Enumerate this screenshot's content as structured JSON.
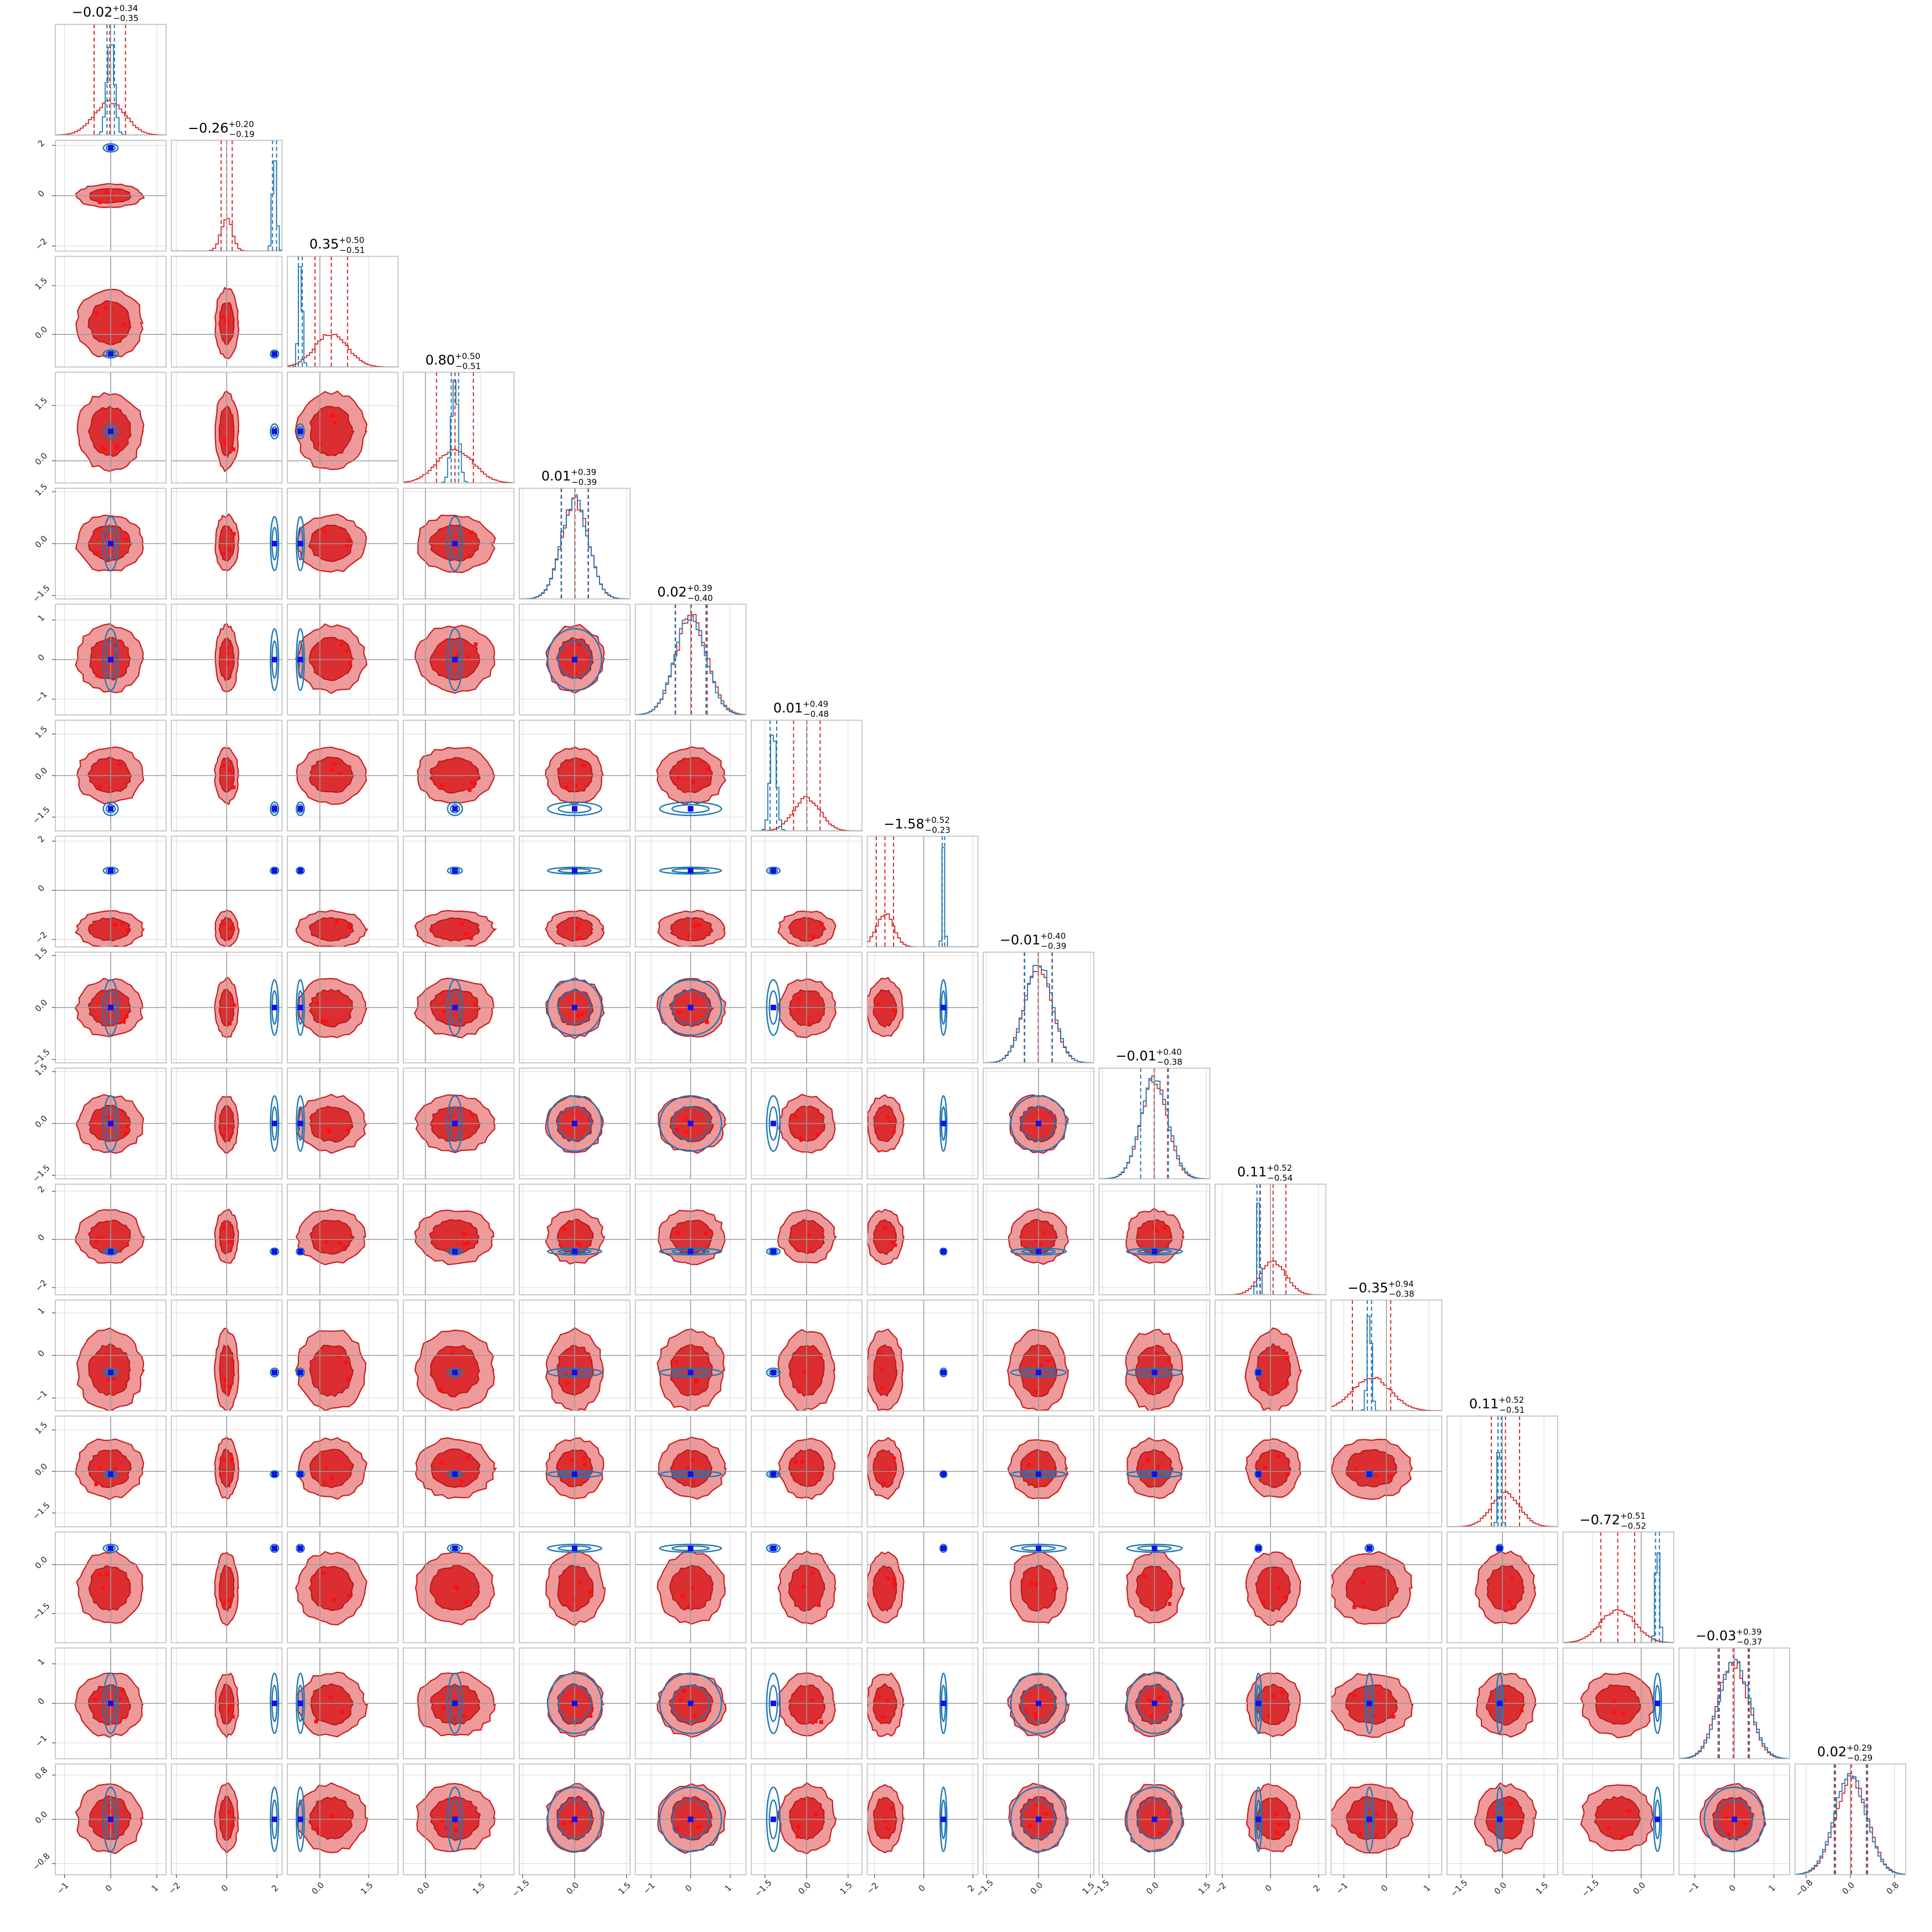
{
  "chart_data": {
    "type": "scatter",
    "subtype": "corner",
    "n_params": 16,
    "colors": {
      "posterior_a": "#d62728",
      "posterior_b": "#1f77b4",
      "truth_marker": "#0000ff",
      "points": "#ff0000"
    },
    "grid": true,
    "params": [
      {
        "index": 0,
        "median": -0.02,
        "plus": "0.34",
        "minus": "0.35",
        "title_value": "−0.02",
        "range": [
          -1.2,
          1.2
        ],
        "ticks": [
          -1,
          0,
          1
        ],
        "tick_labels": [
          "−1",
          "0",
          "1"
        ],
        "blue": {
          "mean": 0.0,
          "sd": 0.08
        },
        "red": {
          "mean": -0.02,
          "sd": 0.34
        }
      },
      {
        "index": 1,
        "median": -0.26,
        "plus": "0.20",
        "minus": "0.19",
        "title_value": "−0.26",
        "range": [
          -2.2,
          2.2
        ],
        "ticks": [
          -2,
          0,
          2
        ],
        "tick_labels": [
          "−2",
          "0",
          "2"
        ],
        "blue": {
          "mean": 1.9,
          "sd": 0.08
        },
        "red": {
          "mean": 0.0,
          "sd": 0.22
        }
      },
      {
        "index": 2,
        "median": 0.35,
        "plus": "0.50",
        "minus": "0.51",
        "title_value": "0.35",
        "range": [
          -1.0,
          2.4
        ],
        "ticks": [
          0.0,
          1.5
        ],
        "tick_labels": [
          "0.0",
          "1.5"
        ],
        "blue": {
          "mean": -0.6,
          "sd": 0.06
        },
        "red": {
          "mean": 0.35,
          "sd": 0.5
        }
      },
      {
        "index": 3,
        "median": 0.8,
        "plus": "0.50",
        "minus": "0.51",
        "title_value": "0.80",
        "range": [
          -0.6,
          2.4
        ],
        "ticks": [
          0.0,
          1.5
        ],
        "tick_labels": [
          "0.0",
          "1.5"
        ],
        "blue": {
          "mean": 0.8,
          "sd": 0.1
        },
        "red": {
          "mean": 0.8,
          "sd": 0.5
        }
      },
      {
        "index": 4,
        "median": 0.01,
        "plus": "0.39",
        "minus": "0.39",
        "title_value": "0.01",
        "range": [
          -1.6,
          1.6
        ],
        "ticks": [
          -1.5,
          0.0,
          1.5
        ],
        "tick_labels": [
          "−1.5",
          "0.0",
          "1.5"
        ],
        "blue": {
          "mean": 0.0,
          "sd": 0.39
        },
        "red": {
          "mean": 0.01,
          "sd": 0.39
        }
      },
      {
        "index": 5,
        "median": 0.02,
        "plus": "0.39",
        "minus": "0.40",
        "title_value": "0.02",
        "range": [
          -1.4,
          1.4
        ],
        "ticks": [
          -1,
          0,
          1
        ],
        "tick_labels": [
          "−1",
          "0",
          "1"
        ],
        "blue": {
          "mean": 0.0,
          "sd": 0.39
        },
        "red": {
          "mean": 0.02,
          "sd": 0.4
        }
      },
      {
        "index": 6,
        "median": 0.01,
        "plus": "0.49",
        "minus": "0.48",
        "title_value": "0.01",
        "range": [
          -2.0,
          2.0
        ],
        "ticks": [
          -1.5,
          0.0,
          1.5
        ],
        "tick_labels": [
          "−1.5",
          "0.0",
          "1.5"
        ],
        "blue": {
          "mean": -1.2,
          "sd": 0.12
        },
        "red": {
          "mean": 0.01,
          "sd": 0.48
        }
      },
      {
        "index": 7,
        "median": -1.58,
        "plus": "0.52",
        "minus": "0.23",
        "title_value": "−1.58",
        "range": [
          -2.3,
          2.2
        ],
        "ticks": [
          -2,
          0,
          2
        ],
        "tick_labels": [
          "−2",
          "0",
          "2"
        ],
        "blue": {
          "mean": 0.8,
          "sd": 0.05
        },
        "red": {
          "mean": -1.58,
          "sd": 0.35
        }
      },
      {
        "index": 8,
        "median": -0.01,
        "plus": "0.40",
        "minus": "0.39",
        "title_value": "−0.01",
        "range": [
          -1.6,
          1.6
        ],
        "ticks": [
          -1.5,
          0.0,
          1.5
        ],
        "tick_labels": [
          "−1.5",
          "0.0",
          "1.5"
        ],
        "blue": {
          "mean": 0.0,
          "sd": 0.4
        },
        "red": {
          "mean": -0.01,
          "sd": 0.4
        }
      },
      {
        "index": 9,
        "median": -0.01,
        "plus": "0.40",
        "minus": "0.38",
        "title_value": "−0.01",
        "range": [
          -1.6,
          1.6
        ],
        "ticks": [
          -1.5,
          0.0,
          1.5
        ],
        "tick_labels": [
          "−1.5",
          "0.0",
          "1.5"
        ],
        "blue": {
          "mean": 0.0,
          "sd": 0.4
        },
        "red": {
          "mean": -0.01,
          "sd": 0.39
        }
      },
      {
        "index": 10,
        "median": 0.11,
        "plus": "0.52",
        "minus": "0.54",
        "title_value": "0.11",
        "range": [
          -2.3,
          2.3
        ],
        "ticks": [
          -2,
          0,
          2
        ],
        "tick_labels": [
          "−2",
          "0",
          "2"
        ],
        "blue": {
          "mean": -0.5,
          "sd": 0.06
        },
        "red": {
          "mean": 0.11,
          "sd": 0.53
        }
      },
      {
        "index": 11,
        "median": -0.35,
        "plus": "0.94",
        "minus": "0.38",
        "title_value": "−0.35",
        "range": [
          -1.3,
          1.3
        ],
        "ticks": [
          -1,
          0,
          1
        ],
        "tick_labels": [
          "−1",
          "0",
          "1"
        ],
        "blue": {
          "mean": -0.4,
          "sd": 0.05
        },
        "red": {
          "mean": -0.35,
          "sd": 0.45
        }
      },
      {
        "index": 12,
        "median": 0.11,
        "plus": "0.52",
        "minus": "0.51",
        "title_value": "0.11",
        "range": [
          -2.0,
          2.0
        ],
        "ticks": [
          -1.5,
          0.0,
          1.5
        ],
        "tick_labels": [
          "−1.5",
          "0.0",
          "1.5"
        ],
        "blue": {
          "mean": -0.1,
          "sd": 0.06
        },
        "red": {
          "mean": 0.11,
          "sd": 0.51
        }
      },
      {
        "index": 13,
        "median": -0.72,
        "plus": "0.51",
        "minus": "0.52",
        "title_value": "−0.72",
        "range": [
          -2.4,
          1.0
        ],
        "ticks": [
          -1.5,
          0.0
        ],
        "tick_labels": [
          "−1.5",
          "0.0"
        ],
        "blue": {
          "mean": 0.5,
          "sd": 0.06
        },
        "red": {
          "mean": -0.72,
          "sd": 0.52
        }
      },
      {
        "index": 14,
        "median": -0.03,
        "plus": "0.39",
        "minus": "0.37",
        "title_value": "−0.03",
        "range": [
          -1.4,
          1.4
        ],
        "ticks": [
          -1,
          0,
          1
        ],
        "tick_labels": [
          "−1",
          "0",
          "1"
        ],
        "blue": {
          "mean": 0.0,
          "sd": 0.38
        },
        "red": {
          "mean": -0.03,
          "sd": 0.38
        }
      },
      {
        "index": 15,
        "median": 0.02,
        "plus": "0.29",
        "minus": "0.29",
        "title_value": "0.02",
        "range": [
          -1.0,
          1.0
        ],
        "ticks": [
          -0.8,
          0.0,
          0.8
        ],
        "tick_labels": [
          "−0.8",
          "0.0",
          "0.8"
        ],
        "blue": {
          "mean": 0.0,
          "sd": 0.29
        },
        "red": {
          "mean": 0.02,
          "sd": 0.29
        }
      }
    ]
  }
}
